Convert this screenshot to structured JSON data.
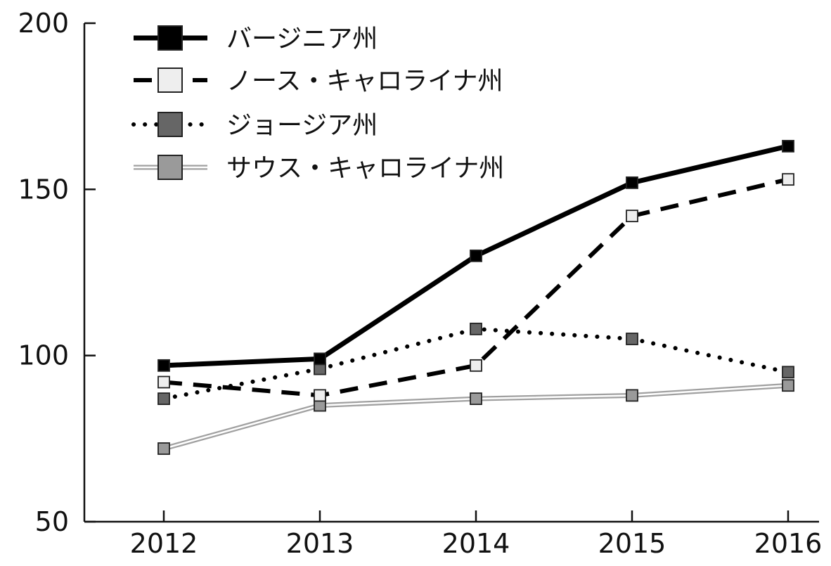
{
  "chart_data": {
    "type": "line",
    "title": "",
    "xlabel": "",
    "ylabel": "",
    "x": [
      "2012",
      "2013",
      "2014",
      "2015",
      "2016"
    ],
    "ylim": [
      50,
      200
    ],
    "yticks": [
      "50",
      "100",
      "150",
      "200"
    ],
    "grid": false,
    "legend_position": "top-left",
    "series": [
      {
        "name": "バージニア州",
        "values": [
          97,
          99,
          130,
          152,
          163
        ],
        "line_style": "solid",
        "color": "#000000",
        "marker_fill": "#000000"
      },
      {
        "name": "ノース・キャロライナ州",
        "values": [
          92,
          88,
          97,
          142,
          153
        ],
        "line_style": "dashed",
        "color": "#000000",
        "marker_fill": "#eeeeee"
      },
      {
        "name": "ジョージア州",
        "values": [
          87,
          96,
          108,
          105,
          95
        ],
        "line_style": "dotted",
        "color": "#000000",
        "marker_fill": "#666666"
      },
      {
        "name": "サウス・キャロライナ州",
        "values": [
          72,
          85,
          87,
          88,
          91
        ],
        "line_style": "double",
        "color": "#a0a0a0",
        "marker_fill": "#9a9a9a"
      }
    ]
  }
}
